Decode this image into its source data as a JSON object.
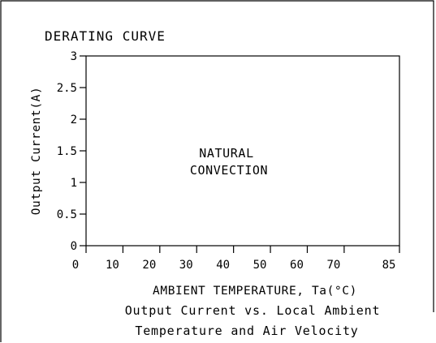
{
  "chart_data": {
    "type": "line",
    "title": "DERATING CURVE",
    "ylabel": "Output Current(A)",
    "xlabel": "AMBIENT TEMPERATURE, Ta(°C)",
    "caption": [
      "Output Current vs. Local Ambient",
      "Temperature and Air Velocity"
    ],
    "annotation": [
      "NATURAL",
      "CONVECTION"
    ],
    "xlim": [
      0,
      85
    ],
    "ylim": [
      0,
      3
    ],
    "x_ticks": [
      0,
      10,
      20,
      30,
      40,
      50,
      60,
      70,
      85
    ],
    "x_tick_labels": [
      "0",
      "10",
      "20",
      "30",
      "40",
      "50",
      "60",
      "70",
      "85"
    ],
    "y_ticks": [
      0,
      0.5,
      1,
      1.5,
      2,
      2.5,
      3
    ],
    "y_tick_labels": [
      "0",
      "0.5",
      "1",
      "1.5",
      "2",
      "2.5",
      "3"
    ],
    "series": [],
    "grid": false,
    "colors": {
      "ink": "#000000",
      "background": "#ffffff"
    }
  }
}
